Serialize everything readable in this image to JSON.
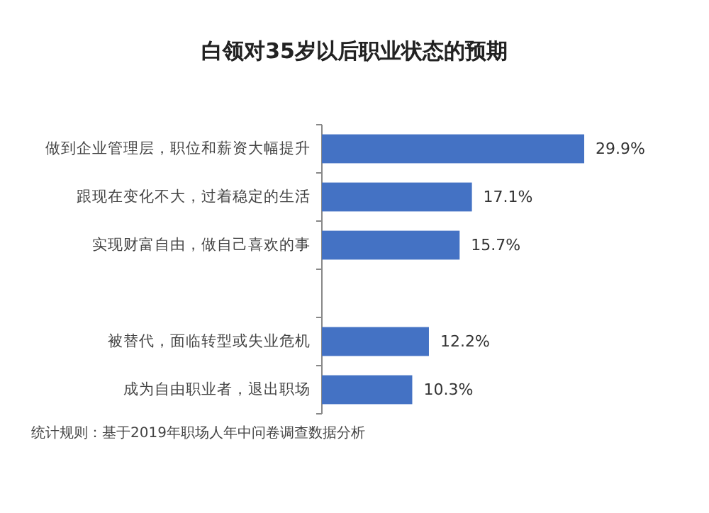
{
  "chart_data": {
    "type": "bar",
    "orientation": "horizontal",
    "title": "白领对35岁以后职业状态的预期",
    "categories": [
      "做到企业管理层，职位和薪资大幅提升",
      "跟现在变化不大，过着稳定的生活",
      "实现财富自由，做自己喜欢的事",
      null,
      "被替代，面临转型或失业危机",
      "成为自由职业者，退出职场"
    ],
    "values": [
      29.9,
      17.1,
      15.7,
      null,
      12.2,
      10.3
    ],
    "value_labels": [
      "29.9%",
      "17.1%",
      "15.7%",
      null,
      "12.2%",
      "10.3%"
    ],
    "color": "#4472c4",
    "annotations": [
      "统计规则：基于2019年职场人年中问卷调查数据分析"
    ]
  }
}
